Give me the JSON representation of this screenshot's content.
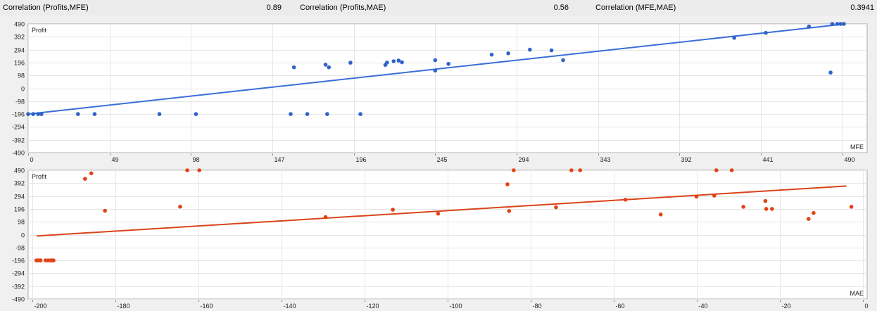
{
  "header": {
    "items": [
      {
        "label": "Correlation (Profits,MFE)",
        "value": "0.89"
      },
      {
        "label": "Correlation (Profits,MAE)",
        "value": "0.56"
      },
      {
        "label": "Correlation (MFE,MAE)",
        "value": "0.3941"
      }
    ]
  },
  "chart_data": [
    {
      "type": "scatter",
      "title": "",
      "ylabel": "Profit",
      "xlabel": "MFE",
      "xlim": [
        0,
        505
      ],
      "ylim": [
        -490,
        490
      ],
      "xticks": [
        0,
        49,
        98,
        147,
        196,
        245,
        294,
        343,
        392,
        441,
        490
      ],
      "yticks": [
        490,
        392,
        294,
        196,
        98,
        0,
        -98,
        -196,
        -294,
        -392,
        -490
      ],
      "grid": true,
      "colors": {
        "points": "#2f63c8",
        "trend": "#3a6fd8"
      },
      "trendline": {
        "x": [
          0,
          492
        ],
        "y": [
          -196,
          490
        ]
      },
      "points": [
        {
          "x": 0,
          "y": -196
        },
        {
          "x": 3,
          "y": -196
        },
        {
          "x": 6,
          "y": -196
        },
        {
          "x": 8,
          "y": -196
        },
        {
          "x": 30,
          "y": -196
        },
        {
          "x": 40,
          "y": -196
        },
        {
          "x": 79,
          "y": -196
        },
        {
          "x": 101,
          "y": -196
        },
        {
          "x": 158,
          "y": -196
        },
        {
          "x": 168,
          "y": -196
        },
        {
          "x": 180,
          "y": -196
        },
        {
          "x": 200,
          "y": -196
        },
        {
          "x": 160,
          "y": 160
        },
        {
          "x": 179,
          "y": 180
        },
        {
          "x": 181,
          "y": 160
        },
        {
          "x": 194,
          "y": 195
        },
        {
          "x": 215,
          "y": 178
        },
        {
          "x": 216,
          "y": 196
        },
        {
          "x": 220,
          "y": 206
        },
        {
          "x": 223,
          "y": 211
        },
        {
          "x": 225,
          "y": 198
        },
        {
          "x": 245,
          "y": 214
        },
        {
          "x": 245,
          "y": 135
        },
        {
          "x": 253,
          "y": 186
        },
        {
          "x": 279,
          "y": 256
        },
        {
          "x": 289,
          "y": 266
        },
        {
          "x": 302,
          "y": 294
        },
        {
          "x": 315,
          "y": 289
        },
        {
          "x": 322,
          "y": 214
        },
        {
          "x": 425,
          "y": 384
        },
        {
          "x": 444,
          "y": 422
        },
        {
          "x": 470,
          "y": 470
        },
        {
          "x": 483,
          "y": 120
        },
        {
          "x": 484,
          "y": 490
        },
        {
          "x": 487,
          "y": 490
        },
        {
          "x": 489,
          "y": 490
        },
        {
          "x": 491,
          "y": 490
        }
      ]
    },
    {
      "type": "scatter",
      "title": "",
      "ylabel": "Profit",
      "xlabel": "MAE",
      "xlim": [
        -201,
        1
      ],
      "ylim": [
        -490,
        490
      ],
      "xticks": [
        -200,
        -180,
        -160,
        -140,
        -120,
        -100,
        -80,
        -60,
        -40,
        -20,
        0
      ],
      "yticks": [
        490,
        392,
        294,
        196,
        98,
        0,
        -98,
        -196,
        -294,
        -392,
        -490
      ],
      "grid": true,
      "colors": {
        "points": "#e04316",
        "trend": "#d94419"
      },
      "trendline": {
        "x": [
          -199,
          -4
        ],
        "y": [
          -10,
          370
        ]
      },
      "points": [
        {
          "x": -199,
          "y": -196
        },
        {
          "x": -198.5,
          "y": -196
        },
        {
          "x": -198,
          "y": -196
        },
        {
          "x": -196.8,
          "y": -196
        },
        {
          "x": -196.2,
          "y": -196
        },
        {
          "x": -195.6,
          "y": -196
        },
        {
          "x": -195.2,
          "y": -196
        },
        {
          "x": -194.9,
          "y": -196
        },
        {
          "x": -187.3,
          "y": 425
        },
        {
          "x": -185.8,
          "y": 467
        },
        {
          "x": -182.5,
          "y": 182
        },
        {
          "x": -164.4,
          "y": 213
        },
        {
          "x": -162.7,
          "y": 490
        },
        {
          "x": -159.8,
          "y": 490
        },
        {
          "x": -129.4,
          "y": 134
        },
        {
          "x": -113.2,
          "y": 190
        },
        {
          "x": -102.3,
          "y": 160
        },
        {
          "x": -85.6,
          "y": 383
        },
        {
          "x": -85.2,
          "y": 180
        },
        {
          "x": -84.1,
          "y": 490
        },
        {
          "x": -73.9,
          "y": 208
        },
        {
          "x": -70.2,
          "y": 490
        },
        {
          "x": -68.1,
          "y": 490
        },
        {
          "x": -57.2,
          "y": 266
        },
        {
          "x": -48.7,
          "y": 154
        },
        {
          "x": -40.1,
          "y": 290
        },
        {
          "x": -35.8,
          "y": 297
        },
        {
          "x": -35.3,
          "y": 490
        },
        {
          "x": -31.6,
          "y": 490
        },
        {
          "x": -28.8,
          "y": 212
        },
        {
          "x": -23.5,
          "y": 256
        },
        {
          "x": -23.3,
          "y": 196
        },
        {
          "x": -21.9,
          "y": 196
        },
        {
          "x": -13.1,
          "y": 120
        },
        {
          "x": -11.9,
          "y": 165
        },
        {
          "x": -2.8,
          "y": 212
        }
      ]
    }
  ]
}
